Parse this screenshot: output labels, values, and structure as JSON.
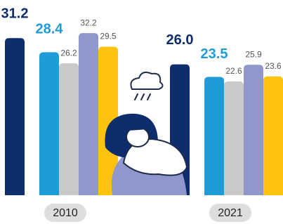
{
  "chart_data": {
    "type": "bar",
    "categories": [
      "2010",
      "2021"
    ],
    "series": [
      {
        "color": "#0e2d6d",
        "values": [
          31.2,
          26.0
        ],
        "value_labels": [
          "31.2",
          "26.0"
        ]
      },
      {
        "color": "#1f9bd7",
        "values": [
          28.4,
          23.5
        ]
      },
      {
        "color": "#c9c9cc",
        "values": [
          26.2,
          22.6
        ]
      },
      {
        "color": "#8f97cd",
        "values": [
          32.2,
          25.9
        ]
      },
      {
        "color": "#fec30f",
        "values": [
          29.5,
          23.6
        ]
      }
    ]
  }
}
